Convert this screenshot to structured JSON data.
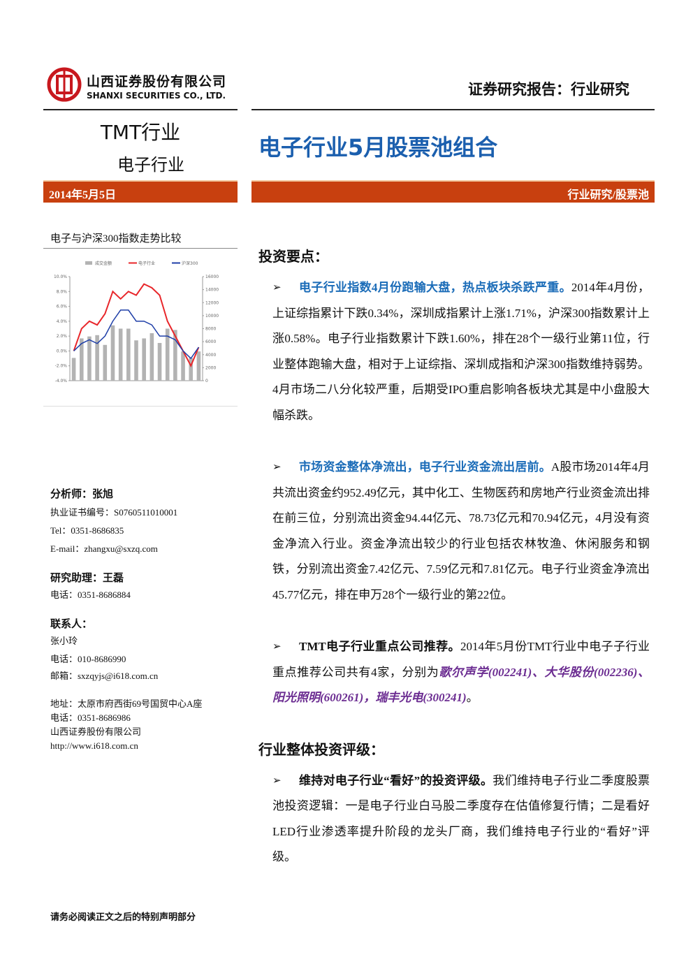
{
  "header": {
    "company_cn": "山西证券股份有限公司",
    "company_en": "SHANXI SECURITIES CO., LTD.",
    "report_type": "证券研究报告：行业研究"
  },
  "sector": {
    "main": "TMT行业",
    "sub": "电子行业"
  },
  "title": "电子行业5月股票池组合",
  "date": "2014年5月5日",
  "tag": "行业研究/股票池",
  "chart_data": {
    "type": "bar_line",
    "title": "电子与沪深300指数走势比较",
    "categories": [
      null,
      null,
      null,
      null,
      null,
      null,
      null,
      null,
      null,
      null,
      null,
      null,
      null,
      null,
      null,
      null,
      null
    ],
    "series": [
      {
        "name": "成交金额",
        "type": "bar",
        "axis": "y2",
        "color": "#b3b3b3",
        "values": [
          3500,
          6500,
          6800,
          7000,
          5500,
          8500,
          8000,
          8000,
          6200,
          6500,
          7300,
          5800,
          8000,
          7800,
          4500,
          3500,
          4500
        ]
      },
      {
        "name": "电子行业",
        "type": "line",
        "color": "#e8262a",
        "values": [
          0,
          3,
          4,
          3.5,
          5,
          8,
          7,
          8,
          7.5,
          9,
          8.5,
          7.5,
          4,
          2,
          0,
          -2,
          0.5
        ]
      },
      {
        "name": "沪深300",
        "type": "line",
        "color": "#1f3fa8",
        "values": [
          0,
          1,
          1.5,
          1,
          2,
          4,
          5.5,
          5.5,
          4,
          4,
          3.5,
          2,
          2,
          1.5,
          0,
          -1,
          0.5
        ]
      }
    ],
    "ylim": [
      -4,
      10
    ],
    "yticks": [
      {
        "value": -4,
        "label": "-4.0%"
      },
      {
        "value": -2,
        "label": "-2.0%"
      },
      {
        "value": 0,
        "label": "0.0%"
      },
      {
        "value": 2,
        "label": "2.0%"
      },
      {
        "value": 4,
        "label": "4.0%"
      },
      {
        "value": 6,
        "label": "6.0%"
      },
      {
        "value": 8,
        "label": "8.0%"
      },
      {
        "value": 10,
        "label": "10.0%"
      }
    ],
    "y2lim": [
      0,
      16000
    ],
    "y2ticks": [
      0,
      2000,
      4000,
      6000,
      8000,
      10000,
      12000,
      14000,
      16000
    ]
  },
  "contacts": {
    "analyst": "分析师：张旭",
    "license": "执业证书编号：S0760511010001",
    "tel": "Tel：0351-8686835",
    "email": "E-mail：zhangxu@sxzq.com",
    "assistant": "研究助理：王磊",
    "assistant_tel": "电话：0351-8686884",
    "contact_title": "联系人：",
    "contact_name": "张小玲",
    "contact_tel": "电话：010-8686990",
    "contact_email": "邮箱：sxzqyjs@i618.com.cn",
    "address": "地址：太原市府西街69号国贸中心A座",
    "address_tel": "电话：0351-8686986",
    "company": "山西证券股份有限公司",
    "website": "http://www.i618.com.cn"
  },
  "sections": [
    {
      "heading": "投资要点：",
      "paragraphs": [
        {
          "lead": "电子行业指数4月份跑输大盘，热点板块杀跌严重。",
          "text": "2014年4月份，上证综指累计下跌0.34%，深圳成指累计上涨1.71%，沪深300指数累计上涨0.58%。电子行业指数累计下跌1.60%，排在28个一级行业第11位，行业整体跑输大盘，相对于上证综指、深圳成指和沪深300指数维持弱势。4月市场二八分化较严重，后期受IPO重启影响各板块尤其是中小盘股大幅杀跌。"
        },
        {
          "lead": "市场资金整体净流出，电子行业资金流出居前。",
          "text": "A股市场2014年4月共流出资金约952.49亿元，其中化工、生物医药和房地产行业资金流出排在前三位，分别流出资金94.44亿元、78.73亿元和70.94亿元，4月没有资金净流入行业。资金净流出较少的行业包括农林牧渔、休闲服务和钢铁，分别流出资金7.42亿元、7.59亿元和7.81亿元。电子行业资金净流出45.77亿元，排在申万28个一级行业的第22位。"
        },
        {
          "lead": "TMT电子行业重点公司推荐。",
          "text": "2014年5月份TMT行业中电子子行业重点推荐公司共有4家，分别为",
          "highlight": "歌尔声学(002241)、大华股份(002236)、阳光照明(600261)，瑞丰光电(300241)",
          "tail": "。"
        }
      ]
    },
    {
      "heading": "行业整体投资评级：",
      "paragraphs": [
        {
          "lead": "维持对电子行业“看好”的投资评级。",
          "text": "我们维持电子行业二季度股票池投资逻辑：一是电子行业白马股二季度存在估值修复行情；二是看好LED行业渗透率提升阶段的龙头厂商，我们维持电子行业的“看好”评级。"
        }
      ]
    }
  ],
  "footer": "请务必阅读正文之后的特别声明部分"
}
